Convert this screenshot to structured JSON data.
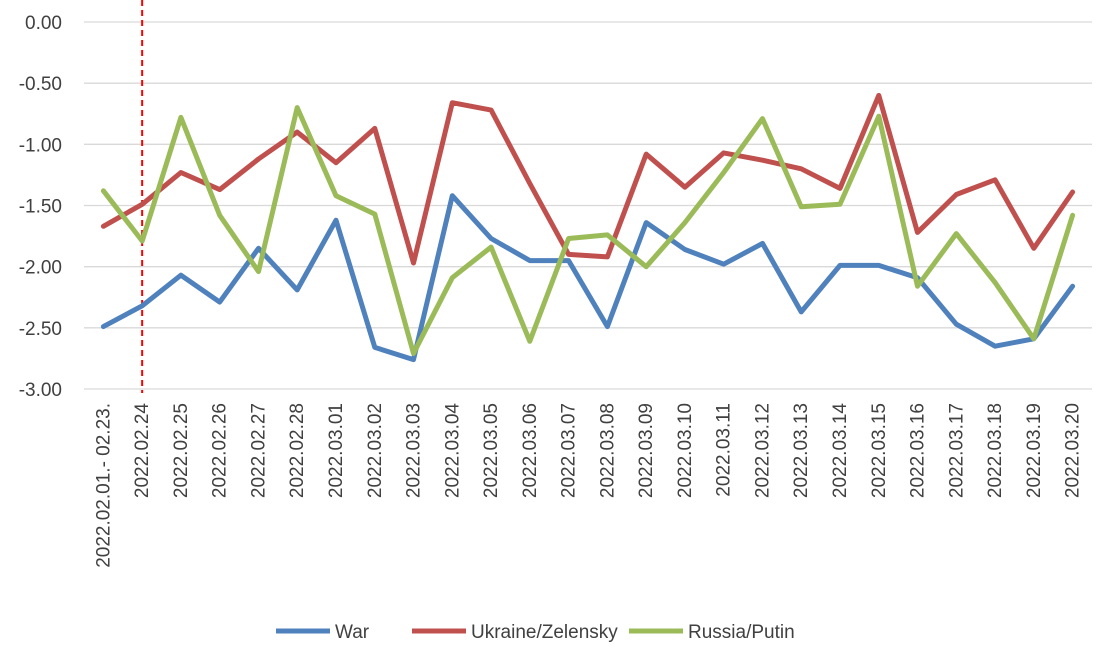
{
  "chart_data": {
    "type": "line",
    "title": "",
    "xlabel": "",
    "ylabel": "",
    "ylim": [
      -3.0,
      0.0
    ],
    "y_ticks": [
      "0.00",
      "-0.50",
      "-1.00",
      "-1.50",
      "-2.00",
      "-2.50",
      "-3.00"
    ],
    "y_tick_values": [
      0.0,
      -0.5,
      -1.0,
      -1.5,
      -2.0,
      -2.5,
      -3.0
    ],
    "grid": "horizontal",
    "legend_position": "bottom",
    "categories": [
      "2022.02.01.- 02.23.",
      "2022.02.24",
      "2022.02.25",
      "2022.02.26",
      "2022.02.27",
      "2022.02.28",
      "2022.03.01",
      "2022.03.02",
      "2022.03.03",
      "2022.03.04",
      "2022.03.05",
      "2022.03.06",
      "2022.03.07",
      "2022.03.08",
      "2022.03.09",
      "2022.03.10",
      "2022.03.11",
      "2022.03.12",
      "2022.03.13",
      "2022.03.14",
      "2022.03.15",
      "2022.03.16",
      "2022.03.17",
      "2022.03.18",
      "2022.03.19",
      "2022.03.20"
    ],
    "marker": {
      "category": "2022.02.24",
      "style": "dashed",
      "color": "#FF0000"
    },
    "series": [
      {
        "name": "War",
        "color": "#4F81BD",
        "values": [
          -2.49,
          -2.32,
          -2.07,
          -2.29,
          -1.85,
          -2.19,
          -1.62,
          -2.66,
          -2.76,
          -1.42,
          -1.77,
          -1.95,
          -1.95,
          -2.49,
          -1.64,
          -1.86,
          -1.98,
          -1.81,
          -2.37,
          -1.99,
          -1.99,
          -2.09,
          -2.47,
          -2.65,
          -2.59,
          -2.16
        ]
      },
      {
        "name": "Ukraine/Zelensky",
        "color": "#C0504D",
        "values": [
          -1.67,
          -1.49,
          -1.23,
          -1.37,
          -1.12,
          -0.9,
          -1.15,
          -0.87,
          -1.97,
          -0.66,
          -0.72,
          -1.32,
          -1.9,
          -1.92,
          -1.08,
          -1.35,
          -1.07,
          -1.13,
          -1.2,
          -1.36,
          -0.6,
          -1.72,
          -1.41,
          -1.29,
          -1.85,
          -1.39
        ]
      },
      {
        "name": "Russia/Putin",
        "color": "#9BBB59",
        "values": [
          -1.38,
          -1.79,
          -0.78,
          -1.58,
          -2.04,
          -0.7,
          -1.42,
          -1.57,
          -2.71,
          -2.09,
          -1.84,
          -2.61,
          -1.77,
          -1.74,
          -2.0,
          -1.64,
          -1.23,
          -0.79,
          -1.51,
          -1.49,
          -0.77,
          -2.16,
          -1.73,
          -2.13,
          -2.59,
          -1.58
        ]
      }
    ]
  }
}
